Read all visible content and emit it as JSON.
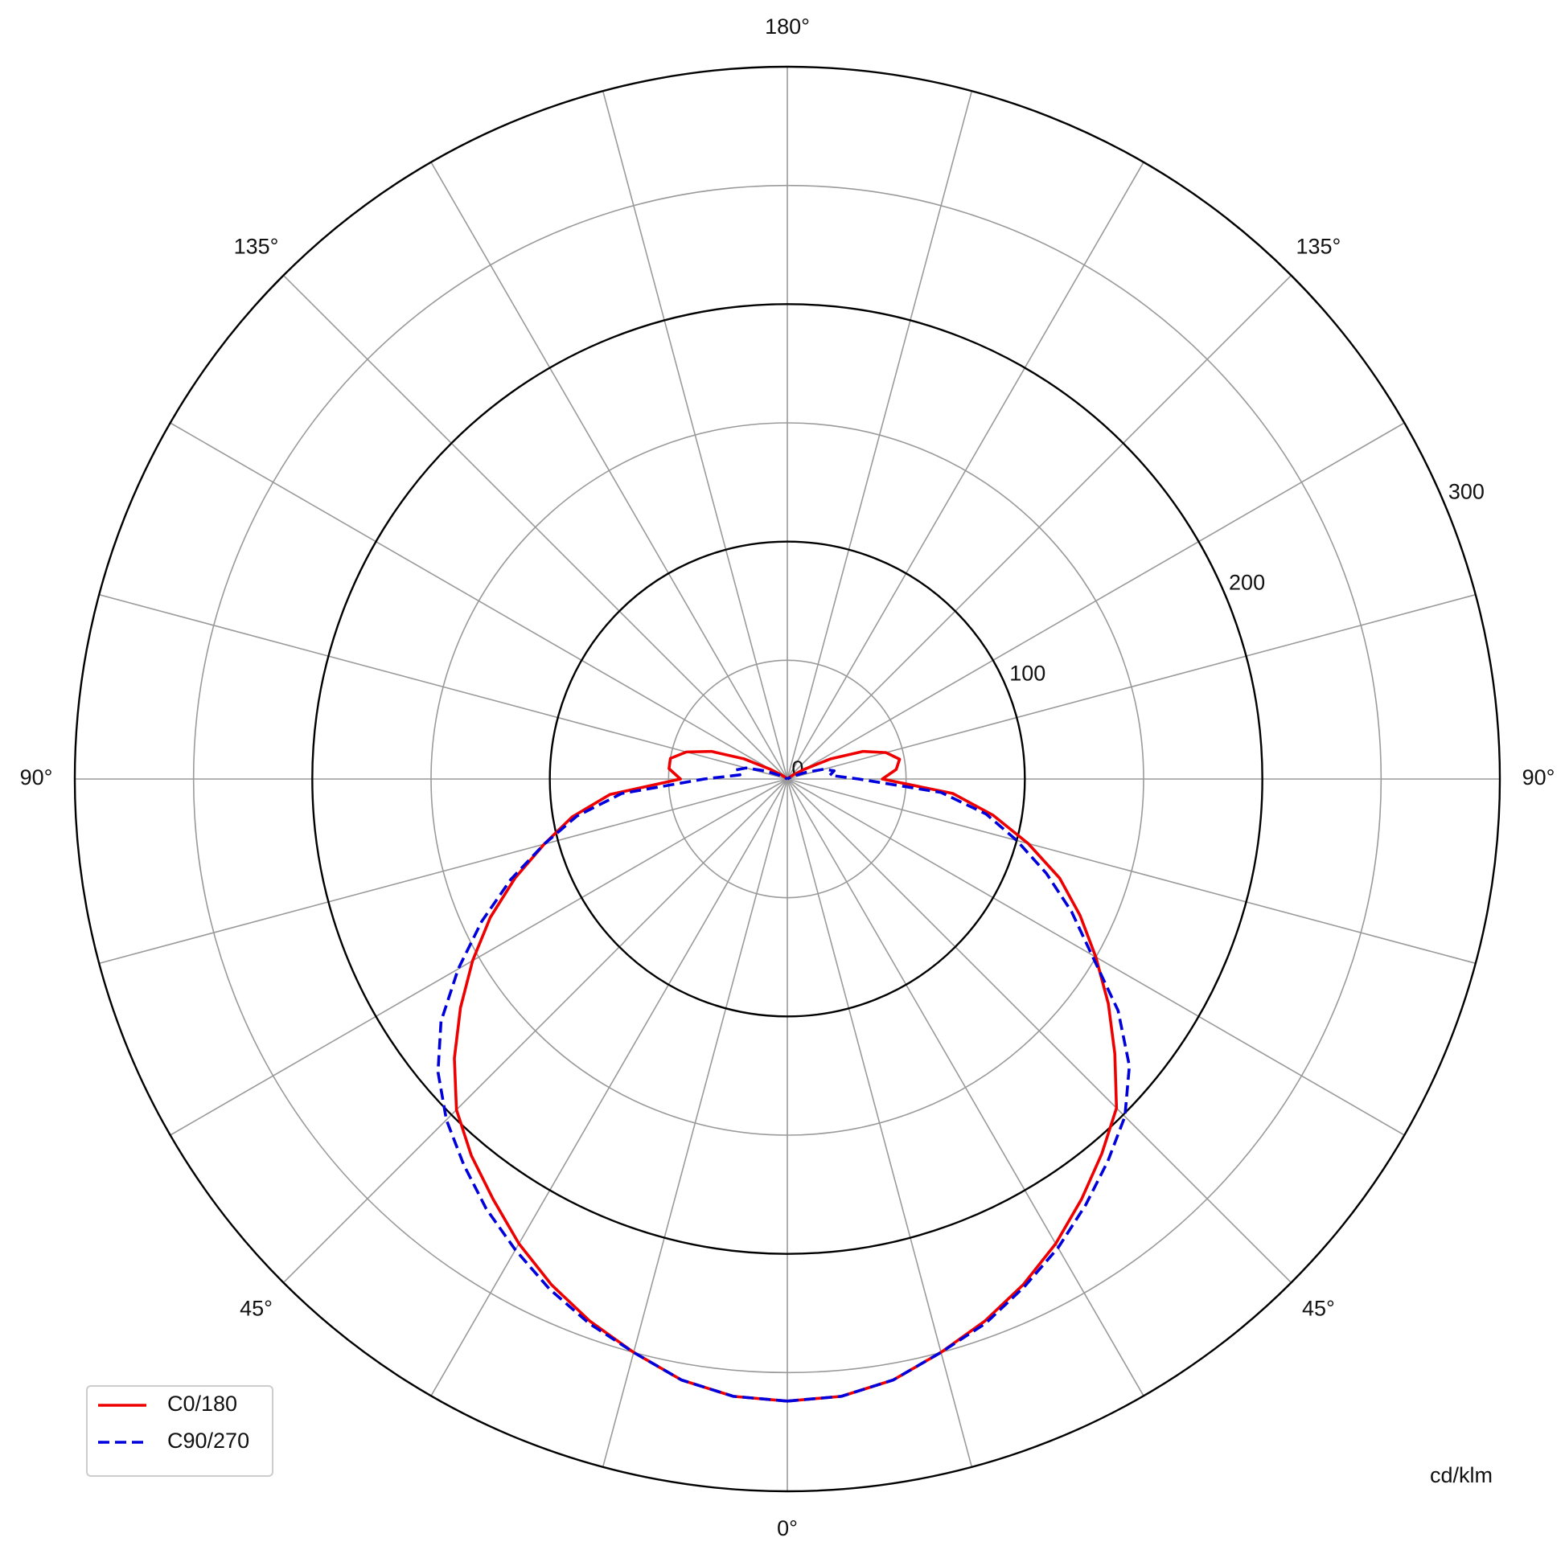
{
  "chart_data": {
    "type": "polar",
    "unit_label": "cd/klm",
    "x": [
      0,
      5,
      10,
      15,
      20,
      25,
      30,
      35,
      40,
      45,
      50,
      55,
      60,
      65,
      70,
      75,
      80,
      85,
      90,
      95,
      100,
      105,
      110,
      115,
      120,
      125,
      130,
      135,
      140,
      145,
      150,
      155,
      160,
      165,
      170,
      175,
      180
    ],
    "series": [
      {
        "name": "C0/180",
        "color": "#ee0000",
        "line_style": "solid",
        "values": [
          262,
          261,
          257,
          250,
          243,
          235,
          226,
          216,
          206,
          196,
          180,
          165,
          150,
          136,
          122,
          105,
          88,
          70,
          40,
          46,
          48,
          43,
          34,
          20,
          8,
          3,
          1,
          0,
          0,
          0,
          0,
          0,
          0,
          0,
          0,
          0,
          0
        ],
        "values_opposite": [
          262,
          261,
          257,
          250,
          243,
          235,
          226,
          216,
          207,
          197,
          183,
          168,
          153,
          138,
          122,
          106,
          92,
          75,
          45,
          50,
          50,
          44,
          34,
          20,
          8,
          3,
          1,
          0,
          0,
          0,
          0,
          0,
          0,
          0,
          0,
          0,
          0
        ]
      },
      {
        "name": "C90/270",
        "color": "#0000dd",
        "line_style": "dashed",
        "values": [
          262,
          261,
          257,
          250,
          244,
          236,
          228,
          219,
          210,
          201,
          188,
          170,
          148,
          132,
          116,
          100,
          85,
          65,
          30,
          18,
          20,
          16,
          8,
          3,
          1,
          0,
          0,
          0,
          0,
          0,
          0,
          0,
          0,
          0,
          0,
          0,
          0
        ],
        "values_opposite": [
          262,
          261,
          257,
          250,
          244,
          237,
          229,
          221,
          212,
          203,
          192,
          178,
          160,
          142,
          124,
          106,
          90,
          70,
          35,
          20,
          22,
          18,
          10,
          4,
          1,
          0,
          0,
          0,
          0,
          0,
          0,
          0,
          0,
          0,
          0,
          0,
          0
        ]
      }
    ],
    "rlim": [
      0,
      300
    ],
    "rticks": [
      0,
      100,
      200,
      300
    ],
    "rminor": [
      50,
      150,
      250
    ],
    "thetaticks": [
      {
        "value": 0,
        "label": "0°"
      },
      {
        "value": 45,
        "label": "45°"
      },
      {
        "value": 90,
        "label": "90°"
      },
      {
        "value": 135,
        "label": "135°"
      },
      {
        "value": 180,
        "label": "180°"
      }
    ],
    "theta_grid_step": 15,
    "legend": "lower left"
  }
}
